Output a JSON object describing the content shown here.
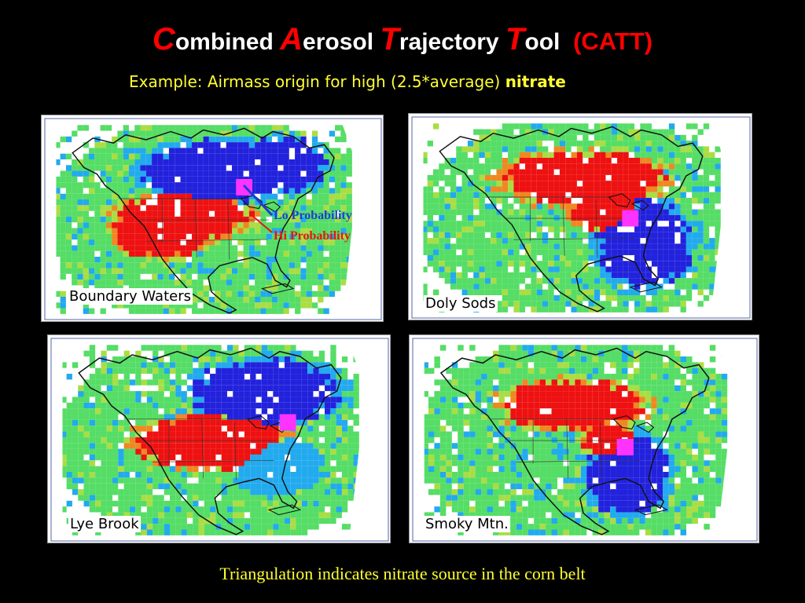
{
  "title": {
    "words": [
      {
        "cap": "C",
        "rest": "ombined"
      },
      {
        "cap": "A",
        "rest": "erosol"
      },
      {
        "cap": "T",
        "rest": "rajectory"
      },
      {
        "cap": "T",
        "rest": "ool"
      }
    ],
    "acronym": "(CATT)"
  },
  "subtitle": {
    "text": "Example: Airmass origin for high (2.5*average)",
    "keyword": "nitrate"
  },
  "legend": {
    "lo_label": "Lo Probability",
    "hi_label": "Hi Probability",
    "lo_color": "#1e3cd8",
    "hi_color": "#ee1111"
  },
  "colors": {
    "low": "#2222dd",
    "mid_low": "#22aaee",
    "mid": "#55dd66",
    "mid_high": "#aadd44",
    "high": "#ee1111",
    "receptor": "#ff33ff"
  },
  "panels": [
    {
      "label": "Boundary Waters"
    },
    {
      "label": "Doly Sods"
    },
    {
      "label": "Lye Brook"
    },
    {
      "label": "Smoky Mtn."
    }
  ],
  "footer": "Triangulation indicates nitrate source in the corn belt"
}
